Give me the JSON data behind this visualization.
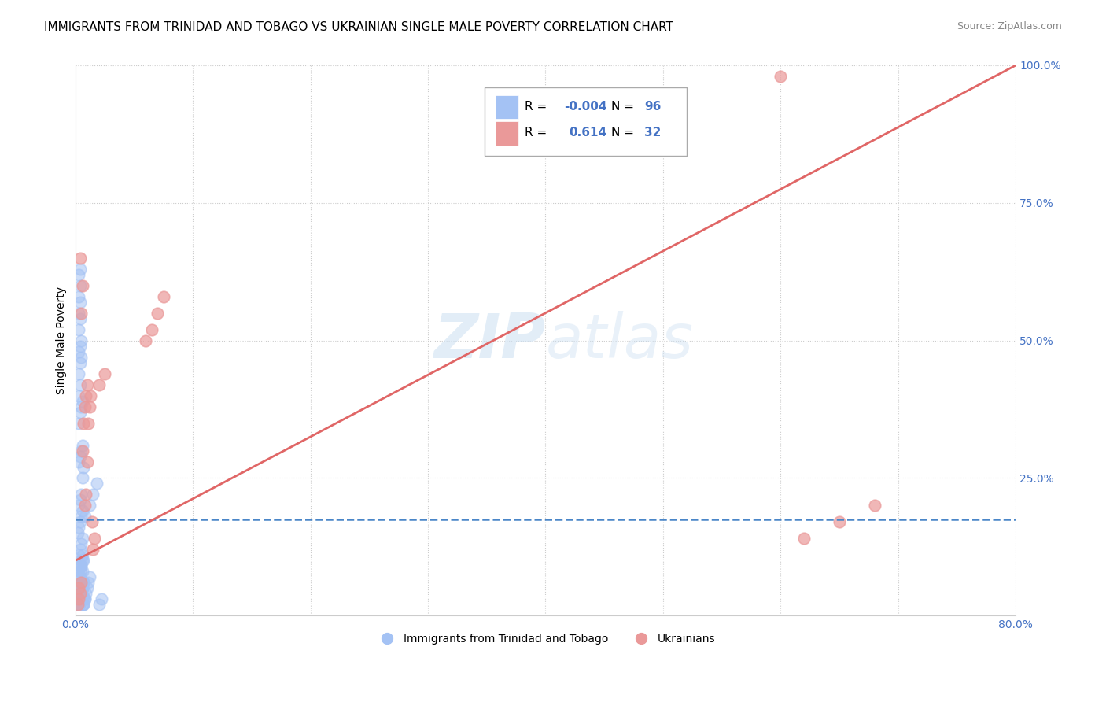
{
  "title": "IMMIGRANTS FROM TRINIDAD AND TOBAGO VS UKRAINIAN SINGLE MALE POVERTY CORRELATION CHART",
  "source": "Source: ZipAtlas.com",
  "ylabel": "Single Male Poverty",
  "watermark": "ZIPatlas",
  "blue_label": "Immigrants from Trinidad and Tobago",
  "pink_label": "Ukrainians",
  "blue_R": -0.004,
  "blue_N": 96,
  "pink_R": 0.614,
  "pink_N": 32,
  "xlim": [
    0.0,
    0.8
  ],
  "ylim": [
    0.0,
    1.0
  ],
  "blue_color": "#a4c2f4",
  "pink_color": "#ea9999",
  "blue_line_color": "#4a86c8",
  "pink_line_color": "#e06666",
  "grid_color": "#cccccc",
  "background_color": "#ffffff",
  "title_fontsize": 11,
  "axis_label_fontsize": 10,
  "tick_fontsize": 10,
  "legend_R_color": "#4472c4",
  "legend_N_color": "#4472c4",
  "blue_scatter_x": [
    0.002,
    0.003,
    0.004,
    0.003,
    0.005,
    0.004,
    0.006,
    0.005,
    0.007,
    0.003,
    0.004,
    0.005,
    0.006,
    0.002,
    0.003,
    0.004,
    0.005,
    0.006,
    0.003,
    0.004,
    0.005,
    0.006,
    0.007,
    0.003,
    0.004,
    0.005,
    0.003,
    0.004,
    0.005,
    0.006,
    0.007,
    0.008,
    0.009,
    0.01,
    0.011,
    0.012,
    0.003,
    0.004,
    0.005,
    0.006,
    0.007,
    0.008,
    0.003,
    0.004,
    0.005,
    0.006,
    0.007,
    0.003,
    0.004,
    0.005,
    0.003,
    0.004,
    0.005,
    0.006,
    0.007,
    0.003,
    0.004,
    0.005,
    0.003,
    0.004,
    0.003,
    0.004,
    0.005,
    0.006,
    0.003,
    0.004,
    0.005,
    0.006,
    0.003,
    0.004,
    0.003,
    0.004,
    0.005,
    0.006,
    0.003,
    0.004,
    0.005,
    0.003,
    0.004,
    0.005,
    0.003,
    0.004,
    0.003,
    0.004,
    0.003,
    0.004,
    0.003,
    0.004,
    0.006,
    0.007,
    0.008,
    0.012,
    0.015,
    0.018,
    0.02,
    0.022
  ],
  "blue_scatter_y": [
    0.02,
    0.03,
    0.04,
    0.05,
    0.06,
    0.07,
    0.08,
    0.09,
    0.1,
    0.11,
    0.12,
    0.13,
    0.14,
    0.15,
    0.16,
    0.17,
    0.18,
    0.19,
    0.2,
    0.21,
    0.22,
    0.02,
    0.03,
    0.04,
    0.05,
    0.06,
    0.07,
    0.08,
    0.09,
    0.1,
    0.02,
    0.03,
    0.04,
    0.05,
    0.06,
    0.07,
    0.08,
    0.09,
    0.1,
    0.11,
    0.02,
    0.03,
    0.02,
    0.03,
    0.04,
    0.05,
    0.06,
    0.02,
    0.03,
    0.04,
    0.02,
    0.03,
    0.04,
    0.05,
    0.06,
    0.02,
    0.03,
    0.04,
    0.02,
    0.03,
    0.02,
    0.03,
    0.04,
    0.05,
    0.35,
    0.37,
    0.38,
    0.39,
    0.4,
    0.42,
    0.28,
    0.29,
    0.3,
    0.31,
    0.44,
    0.46,
    0.47,
    0.48,
    0.49,
    0.5,
    0.52,
    0.54,
    0.55,
    0.57,
    0.58,
    0.6,
    0.62,
    0.63,
    0.25,
    0.27,
    0.18,
    0.2,
    0.22,
    0.24,
    0.02,
    0.03
  ],
  "pink_scatter_x": [
    0.002,
    0.003,
    0.004,
    0.003,
    0.005,
    0.006,
    0.007,
    0.005,
    0.006,
    0.004,
    0.008,
    0.009,
    0.01,
    0.011,
    0.012,
    0.01,
    0.013,
    0.008,
    0.009,
    0.015,
    0.016,
    0.014,
    0.02,
    0.025,
    0.06,
    0.065,
    0.07,
    0.075,
    0.6,
    0.62,
    0.65,
    0.68
  ],
  "pink_scatter_y": [
    0.02,
    0.03,
    0.04,
    0.05,
    0.06,
    0.3,
    0.35,
    0.55,
    0.6,
    0.65,
    0.38,
    0.4,
    0.42,
    0.35,
    0.38,
    0.28,
    0.4,
    0.2,
    0.22,
    0.12,
    0.14,
    0.17,
    0.42,
    0.44,
    0.5,
    0.52,
    0.55,
    0.58,
    0.98,
    0.14,
    0.17,
    0.2
  ],
  "blue_line_y": 0.175,
  "pink_line_x0": 0.0,
  "pink_line_x1": 0.8,
  "pink_line_y0": 0.1,
  "pink_line_y1": 1.0
}
